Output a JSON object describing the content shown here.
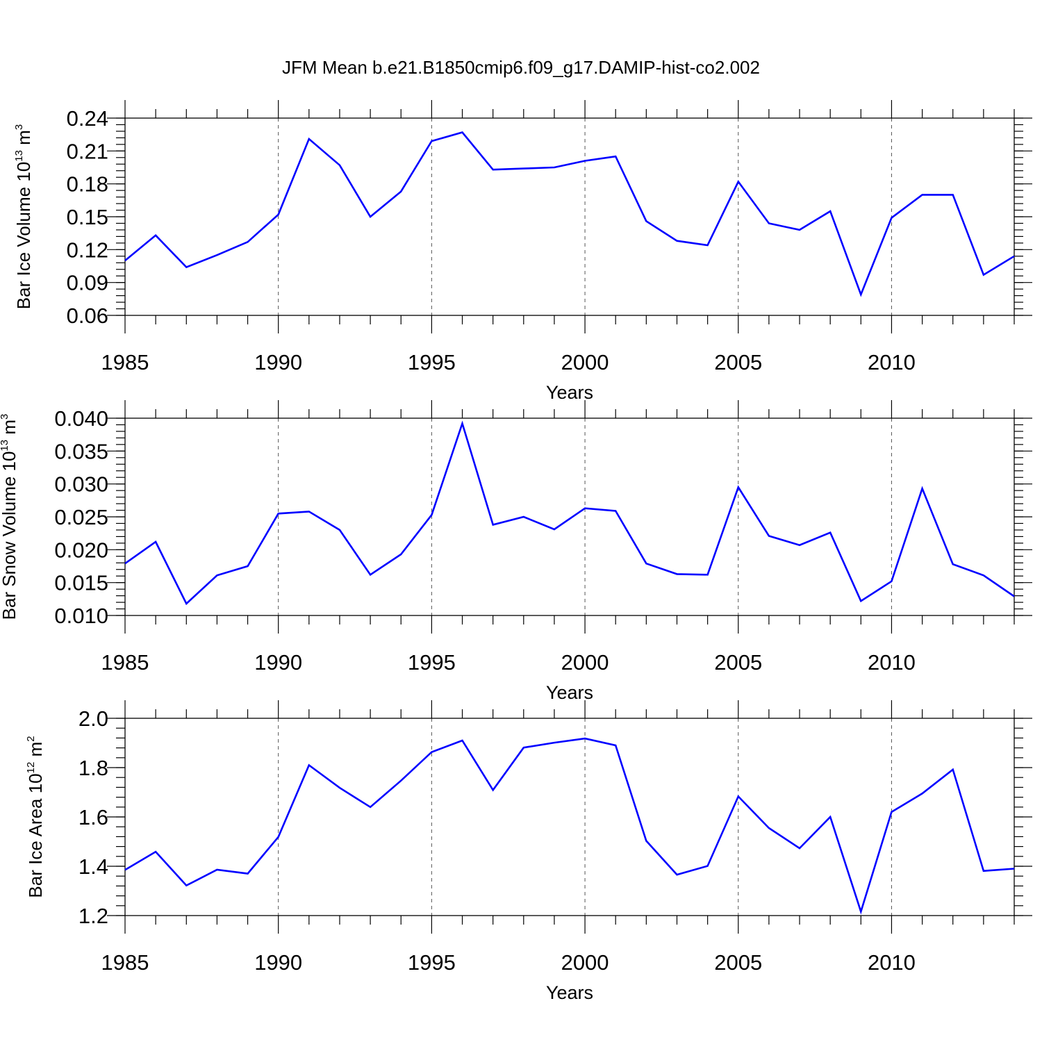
{
  "title": "JFM Mean b.e21.B1850cmip6.f09_g17.DAMIP-hist-co2.002",
  "chart_data": [
    {
      "type": "line",
      "ylabel_main": "Bar Ice Volume 10",
      "ylabel_exp": "13",
      "ylabel_unit": "m",
      "ylabel_unit_exp": "3",
      "xlabel": "Years",
      "xlim": [
        1985,
        2014
      ],
      "ylim": [
        0.06,
        0.24
      ],
      "xticks": [
        1985,
        1990,
        1995,
        2000,
        2005,
        2010
      ],
      "yticks": [
        0.06,
        0.09,
        0.12,
        0.15,
        0.18,
        0.21,
        0.24
      ],
      "ytick_labels": [
        "0.06",
        "0.09",
        "0.12",
        "0.15",
        "0.18",
        "0.21",
        "0.24"
      ],
      "ytick_minor": 0.006,
      "grid": "vertical dashed at major x ticks",
      "series": [
        {
          "name": "Bar Ice Volume",
          "color": "#0000ff",
          "x": [
            1985,
            1986,
            1987,
            1988,
            1989,
            1990,
            1991,
            1992,
            1993,
            1994,
            1995,
            1996,
            1997,
            1998,
            1999,
            2000,
            2001,
            2002,
            2003,
            2004,
            2005,
            2006,
            2007,
            2008,
            2009,
            2010,
            2011,
            2012,
            2013,
            2014
          ],
          "values": [
            0.11,
            0.133,
            0.104,
            0.115,
            0.127,
            0.152,
            0.221,
            0.197,
            0.15,
            0.173,
            0.219,
            0.227,
            0.193,
            0.194,
            0.195,
            0.201,
            0.205,
            0.146,
            0.128,
            0.124,
            0.182,
            0.144,
            0.138,
            0.155,
            0.079,
            0.149,
            0.17,
            0.17,
            0.097,
            0.114
          ]
        }
      ]
    },
    {
      "type": "line",
      "ylabel_main": "Bar Snow Volume 10",
      "ylabel_exp": "13",
      "ylabel_unit": "m",
      "ylabel_unit_exp": "3",
      "xlabel": "Years",
      "xlim": [
        1985,
        2014
      ],
      "ylim": [
        0.01,
        0.04
      ],
      "xticks": [
        1985,
        1990,
        1995,
        2000,
        2005,
        2010
      ],
      "yticks": [
        0.01,
        0.015,
        0.02,
        0.025,
        0.03,
        0.035,
        0.04
      ],
      "ytick_labels": [
        "0.010",
        "0.015",
        "0.020",
        "0.025",
        "0.030",
        "0.035",
        "0.040"
      ],
      "ytick_minor": 0.001,
      "grid": "vertical dashed at major x ticks",
      "series": [
        {
          "name": "Bar Snow Volume",
          "color": "#0000ff",
          "x": [
            1985,
            1986,
            1987,
            1988,
            1989,
            1990,
            1991,
            1992,
            1993,
            1994,
            1995,
            1996,
            1997,
            1998,
            1999,
            2000,
            2001,
            2002,
            2003,
            2004,
            2005,
            2006,
            2007,
            2008,
            2009,
            2010,
            2011,
            2012,
            2013,
            2014
          ],
          "values": [
            0.0179,
            0.0212,
            0.0118,
            0.0161,
            0.0175,
            0.0255,
            0.0258,
            0.023,
            0.0162,
            0.0193,
            0.0253,
            0.0392,
            0.0238,
            0.025,
            0.0231,
            0.0263,
            0.0259,
            0.0179,
            0.0163,
            0.0162,
            0.0295,
            0.0221,
            0.0207,
            0.0226,
            0.0122,
            0.0152,
            0.0293,
            0.0178,
            0.0161,
            0.0129
          ]
        }
      ]
    },
    {
      "type": "line",
      "ylabel_main": "Bar Ice Area 10",
      "ylabel_exp": "12",
      "ylabel_unit": "m",
      "ylabel_unit_exp": "2",
      "xlabel": "Years",
      "xlim": [
        1985,
        2014
      ],
      "ylim": [
        1.2,
        2.0
      ],
      "xticks": [
        1985,
        1990,
        1995,
        2000,
        2005,
        2010
      ],
      "yticks": [
        1.2,
        1.4,
        1.6,
        1.8,
        2.0
      ],
      "ytick_labels": [
        "1.2",
        "1.4",
        "1.6",
        "1.8",
        "2.0"
      ],
      "ytick_minor": 0.04,
      "grid": "vertical dashed at major x ticks",
      "series": [
        {
          "name": "Bar Ice Area",
          "color": "#0000ff",
          "x": [
            1985,
            1986,
            1987,
            1988,
            1989,
            1990,
            1991,
            1992,
            1993,
            1994,
            1995,
            1996,
            1997,
            1998,
            1999,
            2000,
            2001,
            2002,
            2003,
            2004,
            2005,
            2006,
            2007,
            2008,
            2009,
            2010,
            2011,
            2012,
            2013,
            2014
          ],
          "values": [
            1.385,
            1.459,
            1.322,
            1.386,
            1.37,
            1.519,
            1.81,
            1.718,
            1.64,
            1.747,
            1.863,
            1.91,
            1.709,
            1.881,
            1.901,
            1.918,
            1.89,
            1.503,
            1.366,
            1.401,
            1.683,
            1.555,
            1.473,
            1.6,
            1.216,
            1.62,
            1.695,
            1.792,
            1.381,
            1.39
          ]
        }
      ]
    }
  ]
}
